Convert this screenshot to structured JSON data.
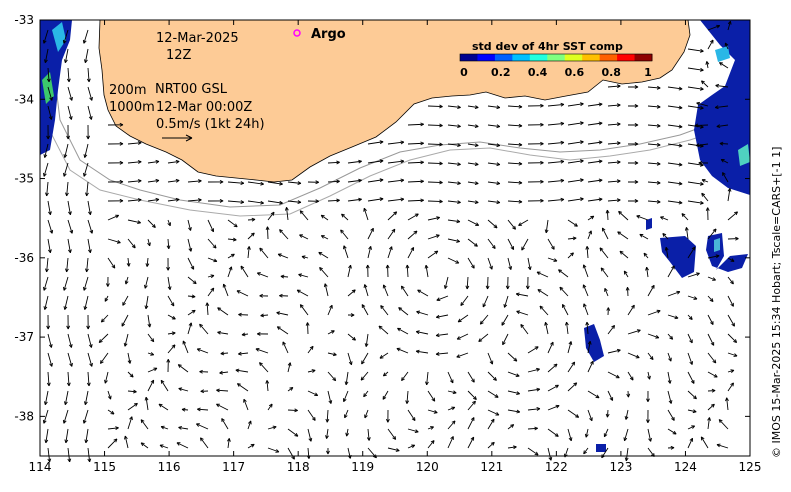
{
  "map": {
    "date": "12-Mar-2025",
    "time": "12Z",
    "legend_line1_left": "200m",
    "legend_line1_right": "NRT00 GSL",
    "legend_line2_left": "1000m",
    "legend_line2_right": "12-Mar 00:00Z",
    "scale_arrow_label": "0.5m/s (1kt 24h)",
    "argo_label": "Argo",
    "credit": "© IMOS 15-Mar-2025 15:34 Hobart; Tscale=CARS+[-1 1]",
    "land_color": "#fdcb96",
    "x_axis": {
      "min": 114,
      "max": 125,
      "ticks": [
        "114",
        "115",
        "116",
        "117",
        "118",
        "119",
        "120",
        "121",
        "122",
        "123",
        "124",
        "125"
      ]
    },
    "y_axis": {
      "min": -38.5,
      "max": -33,
      "ticks": [
        "-33",
        "-34",
        "-35",
        "-36",
        "-37",
        "-38"
      ]
    }
  },
  "colorbar": {
    "title": "std dev of 4hr SST comp",
    "ticks": [
      "0",
      "0.2",
      "0.4",
      "0.6",
      "0.8",
      "1"
    ],
    "colors": [
      "#00008f",
      "#0000ff",
      "#0060ff",
      "#00c0ff",
      "#20ffdf",
      "#80ff80",
      "#dfff20",
      "#ffc000",
      "#ff6000",
      "#ff0000",
      "#8f0000"
    ]
  }
}
